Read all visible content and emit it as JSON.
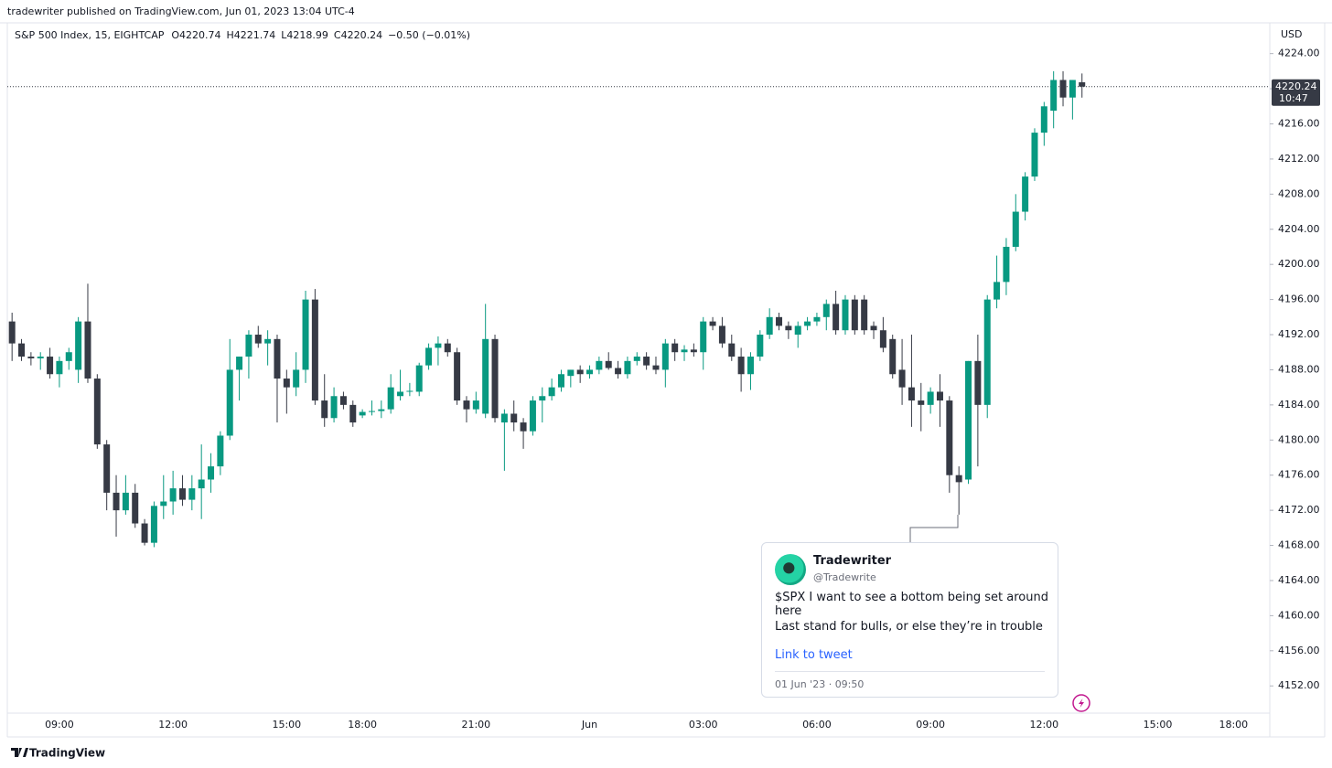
{
  "published": "tradewriter published on TradingView.com, Jun 01, 2023 13:04 UTC-4",
  "brand": "TradingView",
  "annotation": {
    "author": "Tradewriter",
    "handle": "@Tradewrite",
    "lines": [
      "$SPX I want to see a bottom being set around here",
      "Last stand for bulls, or else they’re in trouble"
    ],
    "link": "Link to tweet",
    "date": "01 Jun '23 · 09:50"
  },
  "chart_data": {
    "type": "candlestick",
    "title": "S&P 500 Index, 15, EIGHTCAP",
    "legend_values": [
      "O4220.74",
      "H4221.74",
      "L4218.99",
      "C4220.24",
      "−0.50 (−0.01%)"
    ],
    "currency": "USD",
    "up_color": "#089981",
    "down_color": "#363a45",
    "grid": false,
    "last_price": 4220.24,
    "countdown": "10:47",
    "ylim": [
      4148.9,
      4227.4
    ],
    "yticks": [
      {
        "value": 4152,
        "label": "4152.00"
      },
      {
        "value": 4156,
        "label": "4156.00"
      },
      {
        "value": 4160,
        "label": "4160.00"
      },
      {
        "value": 4164,
        "label": "4164.00"
      },
      {
        "value": 4168,
        "label": "4168.00"
      },
      {
        "value": 4172,
        "label": "4172.00"
      },
      {
        "value": 4176,
        "label": "4176.00"
      },
      {
        "value": 4180,
        "label": "4180.00"
      },
      {
        "value": 4184,
        "label": "4184.00"
      },
      {
        "value": 4188,
        "label": "4188.00"
      },
      {
        "value": 4192,
        "label": "4192.00"
      },
      {
        "value": 4196,
        "label": "4196.00"
      },
      {
        "value": 4200,
        "label": "4200.00"
      },
      {
        "value": 4204,
        "label": "4204.00"
      },
      {
        "value": 4208,
        "label": "4208.00"
      },
      {
        "value": 4212,
        "label": "4212.00"
      },
      {
        "value": 4216,
        "label": "4216.00"
      },
      {
        "value": 4220,
        "label": "4220.00"
      },
      {
        "value": 4224,
        "label": "4224.00"
      }
    ],
    "categories": [
      null,
      null,
      null,
      null,
      null,
      "09:00",
      null,
      null,
      null,
      null,
      null,
      null,
      null,
      null,
      null,
      null,
      null,
      "12:00",
      null,
      null,
      null,
      null,
      null,
      null,
      null,
      null,
      null,
      null,
      null,
      "15:00",
      null,
      null,
      null,
      null,
      null,
      null,
      null,
      "18:00",
      null,
      null,
      null,
      null,
      null,
      null,
      null,
      null,
      null,
      null,
      null,
      "21:00",
      null,
      null,
      null,
      null,
      null,
      null,
      null,
      null,
      null,
      null,
      null,
      "Jun",
      null,
      null,
      null,
      null,
      null,
      null,
      null,
      null,
      null,
      null,
      null,
      "03:00",
      null,
      null,
      null,
      null,
      null,
      null,
      null,
      null,
      null,
      null,
      null,
      "06:00",
      null,
      null,
      null,
      null,
      null,
      null,
      null,
      null,
      null,
      null,
      null,
      "09:00",
      null,
      null,
      null,
      null,
      null,
      null,
      null,
      null,
      null,
      null,
      null,
      "12:00",
      null,
      null,
      null,
      null,
      null,
      null,
      null,
      null,
      null,
      null,
      null,
      "15:00",
      null,
      null,
      null,
      null,
      null,
      null,
      null,
      "18:00",
      null,
      null,
      null
    ],
    "open": [
      4193.5,
      4191,
      4189.5,
      4189.3,
      4189.5,
      4187.5,
      4189,
      4188,
      4193.5,
      4187,
      4179.5,
      4174,
      4172,
      4174,
      4170.5,
      4168.3,
      4172.5,
      4173,
      4174.5,
      4173.2,
      4174.5,
      4175.5,
      4177,
      4180.5,
      4188,
      4189.5,
      4192,
      4191,
      4191.5,
      4187,
      4186,
      4188,
      4196,
      4184.5,
      4182.5,
      4185,
      4184,
      4182.8,
      4183.2,
      4183.3,
      4183.5,
      4185,
      4185.5,
      4185.5,
      4188.5,
      4190.5,
      4191,
      4190,
      4184.5,
      4183.5,
      4183,
      4191.5,
      4182,
      4183,
      4182,
      4181,
      4184.5,
      4185,
      4186,
      4187.3,
      4188,
      4187.5,
      4188,
      4189,
      4188.2,
      4187.5,
      4189,
      4189.5,
      4188.5,
      4188,
      4191,
      4190,
      4190.3,
      4190,
      4193.5,
      4193,
      4191,
      4189.5,
      4187.5,
      4189.5,
      4192,
      4194,
      4193,
      4192,
      4193,
      4193.5,
      4194,
      4195.5,
      4192.5,
      4196,
      4196,
      4193,
      4192.5,
      4191.5,
      4188,
      4186,
      4184.5,
      4184,
      4185.5,
      4184.5,
      4176,
      4175.5,
      4189,
      4184,
      4196,
      4198,
      4202,
      4206,
      4210,
      4215,
      4217.5,
      4221,
      4219,
      4220.74,
      null,
      null,
      null,
      null,
      null,
      null,
      null,
      null,
      null,
      null,
      null,
      null,
      null,
      null,
      null,
      null,
      null,
      null,
      null
    ],
    "high": [
      4194.5,
      4191.5,
      4190,
      4190,
      4190.5,
      4189.5,
      4190.5,
      4194,
      4197.8,
      4187.5,
      4180,
      4176,
      4176,
      4175,
      4171,
      4173,
      4176,
      4176.5,
      4176,
      4176,
      4179.5,
      4178.5,
      4181,
      4191.5,
      4189.5,
      4192.5,
      4193,
      4192.5,
      4192,
      4188,
      4190,
      4197,
      4197.2,
      4187.5,
      4186,
      4185.5,
      4184.5,
      4183.5,
      4184.5,
      4184.5,
      4187.5,
      4188,
      4186.5,
      4188.8,
      4191,
      4191.8,
      4191.5,
      4190.5,
      4185,
      4185.5,
      4195.5,
      4192,
      4183.5,
      4184.5,
      4182.5,
      4185,
      4186,
      4187,
      4188,
      4188,
      4188.5,
      4188.5,
      4189.5,
      4190,
      4189,
      4189.5,
      4190,
      4190,
      4189.5,
      4191.5,
      4191.5,
      4190.8,
      4191,
      4194,
      4194,
      4194,
      4192,
      4190.5,
      4190,
      4192.5,
      4195,
      4194.5,
      4193.5,
      4193.5,
      4194,
      4194.5,
      4196,
      4197,
      4196.5,
      4196.5,
      4196.5,
      4193.5,
      4194,
      4192,
      4191.5,
      4192,
      4186.5,
      4186,
      4187.5,
      4185,
      4177,
      4189,
      4192,
      4196.5,
      4201,
      4203,
      4208,
      4210.5,
      4215.5,
      4218.5,
      4222,
      4222,
      4221,
      4221.74,
      null,
      null,
      null,
      null,
      null,
      null,
      null,
      null,
      null,
      null,
      null,
      null,
      null,
      null,
      null,
      null,
      null,
      null,
      null
    ],
    "low": [
      4189,
      4189,
      4188.5,
      4188,
      4187,
      4186,
      4188,
      4186.5,
      4186.5,
      4179,
      4172,
      4169,
      4171.5,
      4170,
      4168,
      4167.8,
      4171,
      4171.5,
      4172.5,
      4172,
      4171,
      4174,
      4176,
      4180,
      4184.5,
      4187,
      4190.5,
      4188.5,
      4182,
      4183,
      4185,
      4186.5,
      4184,
      4181.5,
      4182,
      4183.5,
      4181.5,
      4182.5,
      4182.8,
      4182.5,
      4183,
      4184.5,
      4185,
      4185,
      4188,
      4188.5,
      4189.5,
      4184,
      4182,
      4183,
      4182.5,
      4182,
      4176.5,
      4181,
      4179,
      4180.5,
      4182,
      4184.5,
      4185.5,
      4186,
      4186.5,
      4187,
      4187.5,
      4188,
      4187,
      4187,
      4188.5,
      4188,
      4187.5,
      4186,
      4189,
      4189,
      4189.5,
      4188,
      4192.5,
      4190.5,
      4189,
      4185.5,
      4185.7,
      4189,
      4191.5,
      4192.5,
      4191.5,
      4190.5,
      4192.5,
      4193,
      4192.5,
      4192,
      4192,
      4192,
      4192,
      4191.5,
      4190,
      4187,
      4184,
      4181.5,
      4181,
      4183,
      4181.5,
      4174,
      4171.5,
      4175,
      4177,
      4182.5,
      4195,
      4196.5,
      4201.5,
      4205,
      4209.5,
      4213.5,
      4215.5,
      4218,
      4216.5,
      4218.99,
      null,
      null,
      null,
      null,
      null,
      null,
      null,
      null,
      null,
      null,
      null,
      null,
      null,
      null,
      null,
      null,
      null,
      null,
      null
    ],
    "close": [
      4191,
      4189.5,
      4189.3,
      4189.5,
      4187.5,
      4189,
      4190,
      4193.5,
      4187,
      4179.5,
      4174,
      4172,
      4174,
      4170.5,
      4168.3,
      4172.5,
      4173,
      4174.5,
      4173.2,
      4174.5,
      4175.5,
      4177,
      4180.5,
      4188,
      4189.5,
      4192,
      4191,
      4191.5,
      4187,
      4186,
      4188,
      4196,
      4184.5,
      4182.5,
      4185,
      4184,
      4182,
      4183.2,
      4183.3,
      4183.5,
      4186,
      4185.5,
      4185.6,
      4188.5,
      4190.5,
      4191,
      4190,
      4184.5,
      4183.5,
      4184.5,
      4191.5,
      4182.5,
      4183,
      4182,
      4181,
      4184.5,
      4185,
      4186,
      4187.5,
      4188,
      4187.5,
      4188,
      4189,
      4188.2,
      4187.5,
      4189,
      4189.5,
      4188.5,
      4188,
      4191,
      4190,
      4190.3,
      4190,
      4193.5,
      4193,
      4191,
      4189.5,
      4187.5,
      4189.5,
      4192,
      4194,
      4193,
      4192.5,
      4193,
      4193.5,
      4194,
      4195.5,
      4192.5,
      4196,
      4192.5,
      4192.5,
      4192.5,
      4190.5,
      4187.5,
      4186,
      4184.5,
      4184,
      4185.5,
      4184.5,
      4176,
      4175.2,
      4189,
      4184,
      4196,
      4198,
      4202,
      4206,
      4210,
      4215,
      4218,
      4221,
      4219,
      4221,
      4220.24,
      null,
      null,
      null,
      null,
      null,
      null,
      null,
      null,
      null,
      null,
      null,
      null,
      null,
      null,
      null,
      null,
      null,
      null,
      null
    ]
  }
}
